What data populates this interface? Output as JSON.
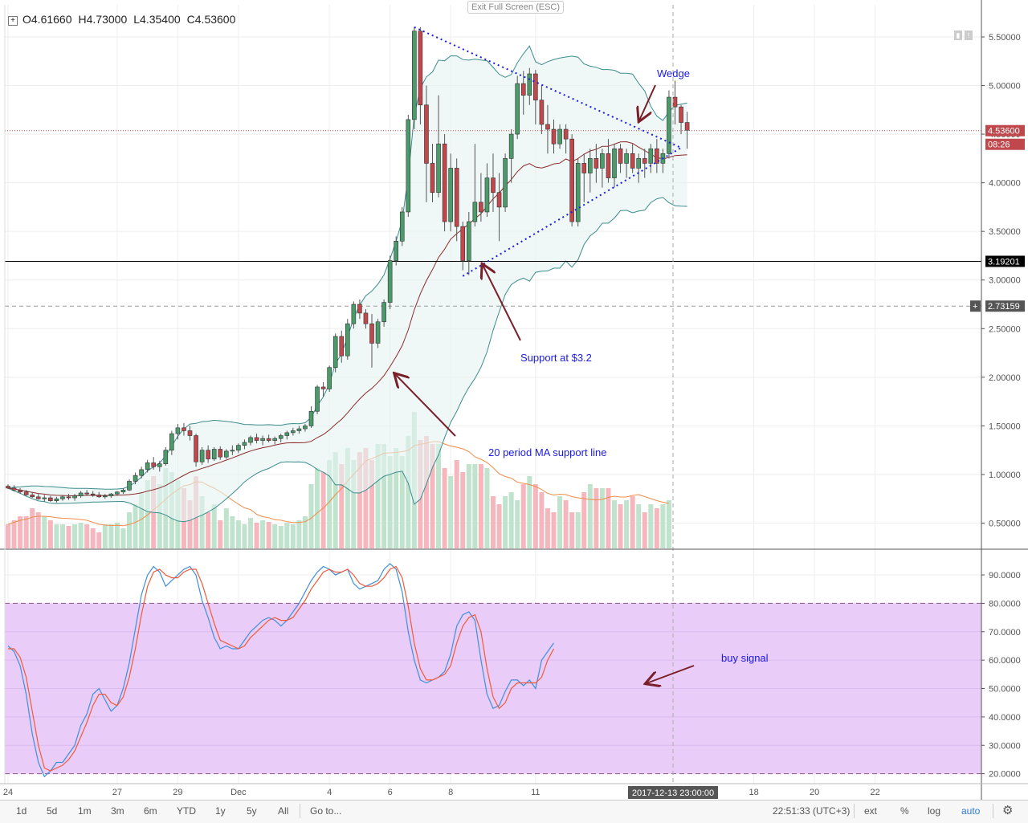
{
  "header": {
    "ohlc": [
      {
        "label": "O",
        "value": "4.61660"
      },
      {
        "label": "H",
        "value": "4.73000"
      },
      {
        "label": "L",
        "value": "4.35400"
      },
      {
        "label": "C",
        "value": "4.53600"
      }
    ],
    "exit_fullscreen": "Exit Full Screen (ESC)"
  },
  "toolbar": {
    "ranges": [
      "1d",
      "5d",
      "1m",
      "3m",
      "6m",
      "YTD",
      "1y",
      "5y",
      "All"
    ],
    "goto": "Go to...",
    "time": "22:51:33 (UTC+3)",
    "options": [
      "ext",
      "%",
      "log",
      "auto"
    ],
    "settings_icon": "gear-icon"
  },
  "colors": {
    "up": "#4a9a6a",
    "down": "#c0474c",
    "bollinger": "#3d8c8c",
    "ma": "#8b2b2b",
    "volume_ma": "#f08c4a",
    "stoch_k": "#3f8fdc",
    "stoch_d": "#ef5a3a",
    "stoch_band": "#e9cdf8",
    "wedge": "#1a1ae6",
    "annotation": "#1a1ae6",
    "arrow": "#7a1f2a"
  },
  "chart_data": [
    {
      "type": "candlestick",
      "x_tick_labels": [
        {
          "index": 0,
          "label": "24"
        },
        {
          "index": 18,
          "label": "27"
        },
        {
          "index": 28,
          "label": "29"
        },
        {
          "index": 38,
          "label": "Dec"
        },
        {
          "index": 53,
          "label": "4"
        },
        {
          "index": 63,
          "label": "6"
        },
        {
          "index": 73,
          "label": "8"
        },
        {
          "index": 87,
          "label": "11"
        },
        {
          "index": 123,
          "label": "18"
        },
        {
          "index": 133,
          "label": "20"
        },
        {
          "index": 143,
          "label": "22"
        }
      ],
      "y_ticks": [
        "5.50000",
        "5.00000",
        "4.50000",
        "4.00000",
        "3.50000",
        "3.00000",
        "2.50000",
        "2.00000",
        "1.50000",
        "1.00000",
        "0.50000"
      ],
      "ylim": [
        0.24,
        5.83
      ],
      "last_price": {
        "value": "4.53600",
        "countdown": "08:26"
      },
      "horizontal_lines": [
        {
          "value": "3.19201",
          "style": "solid"
        },
        {
          "value": "2.73159",
          "style": "dashed"
        }
      ],
      "crosshair_time": "2017-12-13 23:00:00",
      "candles": [
        [
          0.88,
          0.9,
          0.85,
          0.86
        ],
        [
          0.86,
          0.89,
          0.83,
          0.84
        ],
        [
          0.84,
          0.86,
          0.8,
          0.82
        ],
        [
          0.82,
          0.84,
          0.78,
          0.79
        ],
        [
          0.79,
          0.82,
          0.76,
          0.77
        ],
        [
          0.77,
          0.8,
          0.74,
          0.75
        ],
        [
          0.75,
          0.79,
          0.72,
          0.76
        ],
        [
          0.76,
          0.78,
          0.72,
          0.73
        ],
        [
          0.73,
          0.77,
          0.71,
          0.75
        ],
        [
          0.75,
          0.79,
          0.73,
          0.77
        ],
        [
          0.77,
          0.8,
          0.74,
          0.76
        ],
        [
          0.76,
          0.8,
          0.73,
          0.78
        ],
        [
          0.78,
          0.83,
          0.76,
          0.81
        ],
        [
          0.81,
          0.84,
          0.78,
          0.8
        ],
        [
          0.8,
          0.83,
          0.77,
          0.79
        ],
        [
          0.79,
          0.82,
          0.76,
          0.77
        ],
        [
          0.77,
          0.8,
          0.75,
          0.78
        ],
        [
          0.78,
          0.81,
          0.76,
          0.8
        ],
        [
          0.8,
          0.83,
          0.78,
          0.82
        ],
        [
          0.82,
          0.86,
          0.8,
          0.84
        ],
        [
          0.84,
          0.95,
          0.83,
          0.93
        ],
        [
          0.93,
          1.02,
          0.9,
          0.99
        ],
        [
          0.99,
          1.08,
          0.96,
          1.05
        ],
        [
          1.05,
          1.15,
          1.02,
          1.12
        ],
        [
          1.12,
          1.18,
          1.05,
          1.08
        ],
        [
          1.08,
          1.14,
          1.03,
          1.11
        ],
        [
          1.11,
          1.28,
          1.09,
          1.25
        ],
        [
          1.25,
          1.45,
          1.2,
          1.42
        ],
        [
          1.42,
          1.52,
          1.36,
          1.48
        ],
        [
          1.48,
          1.53,
          1.4,
          1.45
        ],
        [
          1.45,
          1.5,
          1.35,
          1.4
        ],
        [
          1.4,
          1.42,
          1.08,
          1.13
        ],
        [
          1.13,
          1.28,
          1.1,
          1.25
        ],
        [
          1.25,
          1.3,
          1.12,
          1.16
        ],
        [
          1.16,
          1.28,
          1.14,
          1.26
        ],
        [
          1.26,
          1.29,
          1.15,
          1.18
        ],
        [
          1.18,
          1.26,
          1.16,
          1.24
        ],
        [
          1.24,
          1.3,
          1.2,
          1.25
        ],
        [
          1.25,
          1.32,
          1.22,
          1.3
        ],
        [
          1.3,
          1.36,
          1.26,
          1.33
        ],
        [
          1.33,
          1.4,
          1.3,
          1.38
        ],
        [
          1.38,
          1.42,
          1.32,
          1.35
        ],
        [
          1.35,
          1.4,
          1.3,
          1.37
        ],
        [
          1.37,
          1.41,
          1.33,
          1.35
        ],
        [
          1.35,
          1.39,
          1.31,
          1.37
        ],
        [
          1.37,
          1.42,
          1.33,
          1.4
        ],
        [
          1.4,
          1.45,
          1.36,
          1.43
        ],
        [
          1.43,
          1.48,
          1.4,
          1.45
        ],
        [
          1.45,
          1.5,
          1.42,
          1.47
        ],
        [
          1.47,
          1.52,
          1.44,
          1.5
        ],
        [
          1.5,
          1.7,
          1.48,
          1.65
        ],
        [
          1.65,
          1.92,
          1.62,
          1.9
        ],
        [
          1.9,
          1.95,
          1.8,
          1.88
        ],
        [
          1.88,
          2.12,
          1.85,
          2.1
        ],
        [
          2.1,
          2.45,
          2.05,
          2.42
        ],
        [
          2.42,
          2.48,
          2.15,
          2.22
        ],
        [
          2.22,
          2.6,
          2.18,
          2.55
        ],
        [
          2.55,
          2.78,
          2.5,
          2.75
        ],
        [
          2.75,
          2.8,
          2.6,
          2.66
        ],
        [
          2.66,
          2.7,
          2.5,
          2.55
        ],
        [
          2.55,
          2.65,
          2.1,
          2.35
        ],
        [
          2.35,
          2.6,
          2.3,
          2.57
        ],
        [
          2.57,
          2.8,
          2.52,
          2.77
        ],
        [
          2.77,
          3.25,
          2.7,
          3.2
        ],
        [
          3.2,
          3.45,
          3.15,
          3.4
        ],
        [
          3.4,
          3.75,
          3.35,
          3.7
        ],
        [
          3.7,
          4.7,
          3.65,
          4.65
        ],
        [
          4.65,
          5.6,
          4.55,
          5.56
        ],
        [
          5.56,
          5.6,
          4.6,
          4.8
        ],
        [
          4.8,
          5.0,
          3.8,
          4.2
        ],
        [
          4.2,
          4.4,
          3.8,
          3.9
        ],
        [
          3.9,
          4.9,
          3.85,
          4.4
        ],
        [
          4.4,
          4.5,
          3.5,
          3.6
        ],
        [
          3.6,
          4.3,
          3.5,
          4.15
        ],
        [
          4.15,
          4.25,
          3.4,
          3.55
        ],
        [
          3.55,
          3.6,
          3.1,
          3.2
        ],
        [
          3.2,
          3.7,
          3.05,
          3.6
        ],
        [
          3.6,
          4.4,
          3.55,
          3.8
        ],
        [
          3.8,
          4.1,
          3.6,
          3.7
        ],
        [
          3.7,
          4.2,
          3.65,
          4.05
        ],
        [
          4.05,
          4.3,
          3.7,
          3.9
        ],
        [
          3.9,
          4.1,
          3.4,
          3.75
        ],
        [
          3.75,
          4.3,
          3.7,
          4.25
        ],
        [
          4.25,
          4.55,
          4.0,
          4.5
        ],
        [
          4.5,
          5.1,
          4.45,
          5.02
        ],
        [
          5.02,
          5.15,
          4.7,
          4.9
        ],
        [
          4.9,
          5.18,
          4.8,
          5.12
        ],
        [
          5.12,
          5.16,
          4.6,
          4.85
        ],
        [
          4.85,
          5.0,
          4.5,
          4.6
        ],
        [
          4.6,
          4.8,
          4.3,
          4.55
        ],
        [
          4.55,
          4.65,
          4.3,
          4.4
        ],
        [
          4.4,
          4.6,
          4.35,
          4.55
        ],
        [
          4.55,
          4.6,
          4.3,
          4.45
        ],
        [
          4.45,
          4.5,
          3.55,
          3.6
        ],
        [
          3.6,
          4.25,
          3.55,
          4.2
        ],
        [
          4.2,
          4.3,
          3.8,
          4.1
        ],
        [
          4.1,
          4.35,
          3.9,
          4.25
        ],
        [
          4.25,
          4.4,
          4.0,
          4.15
        ],
        [
          4.15,
          4.35,
          3.95,
          4.3
        ],
        [
          4.3,
          4.45,
          4.0,
          4.05
        ],
        [
          4.05,
          4.4,
          3.95,
          4.35
        ],
        [
          4.35,
          4.4,
          4.1,
          4.2
        ],
        [
          4.2,
          4.35,
          4.05,
          4.3
        ],
        [
          4.3,
          4.4,
          4.1,
          4.15
        ],
        [
          4.15,
          4.3,
          4.0,
          4.25
        ],
        [
          4.25,
          4.35,
          4.05,
          4.2
        ],
        [
          4.2,
          4.4,
          4.1,
          4.35
        ],
        [
          4.35,
          4.45,
          4.1,
          4.2
        ],
        [
          4.2,
          4.35,
          4.1,
          4.3
        ],
        [
          4.3,
          4.95,
          4.25,
          4.88
        ],
        [
          4.88,
          5.05,
          4.6,
          4.78
        ],
        [
          4.78,
          4.8,
          4.5,
          4.62
        ],
        [
          4.62,
          4.73,
          4.35,
          4.54
        ]
      ],
      "volume": [
        0.3,
        0.35,
        0.4,
        0.4,
        0.5,
        0.45,
        0.4,
        0.35,
        0.3,
        0.3,
        0.28,
        0.3,
        0.32,
        0.3,
        0.25,
        0.2,
        0.3,
        0.3,
        0.32,
        0.25,
        0.45,
        0.55,
        0.7,
        0.85,
        0.9,
        0.8,
        1.0,
        0.95,
        0.85,
        0.75,
        0.6,
        0.9,
        0.65,
        0.45,
        0.55,
        0.35,
        0.5,
        0.4,
        0.35,
        0.3,
        0.38,
        0.32,
        0.35,
        0.33,
        0.3,
        0.28,
        0.32,
        0.3,
        0.35,
        0.4,
        0.8,
        1.0,
        0.95,
        1.1,
        1.2,
        1.05,
        1.25,
        1.1,
        1.2,
        1.25,
        1.1,
        1.3,
        1.3,
        1.15,
        1.25,
        1.15,
        1.4,
        1.7,
        1.35,
        1.4,
        1.3,
        1.3,
        1.0,
        0.9,
        1.1,
        0.95,
        1.05,
        1.05,
        1.05,
        1.0,
        0.65,
        0.55,
        0.65,
        0.7,
        0.6,
        0.8,
        0.9,
        0.8,
        0.7,
        0.5,
        0.45,
        0.65,
        0.6,
        0.45,
        0.45,
        0.7,
        0.8,
        0.75,
        0.75,
        0.75,
        0.6,
        0.55,
        0.6,
        0.65,
        0.55,
        0.45,
        0.55,
        0.5,
        0.55,
        0.6
      ]
    },
    {
      "type": "line",
      "name": "stochastic",
      "y_ticks": [
        "90.0000",
        "80.0000",
        "70.0000",
        "60.0000",
        "50.0000",
        "40.0000",
        "30.0000",
        "20.0000"
      ],
      "ylim": [
        16.5,
        98.5
      ],
      "bands": [
        20,
        80
      ],
      "series": [
        {
          "values": [
            65,
            63,
            58,
            48,
            34,
            24,
            19,
            21,
            24,
            24,
            27,
            30,
            37,
            41,
            48,
            50,
            46,
            42,
            44,
            50,
            59,
            71,
            83,
            90,
            93,
            91,
            86,
            88,
            90,
            92,
            93,
            90,
            81,
            75,
            68,
            64,
            65,
            64,
            64,
            67,
            70,
            72,
            74,
            75,
            74,
            72,
            74,
            77,
            80,
            84,
            88,
            91,
            93,
            92,
            90,
            91,
            92,
            87,
            85,
            86,
            87,
            88,
            92,
            94,
            92,
            84,
            70,
            60,
            53,
            52,
            53,
            54,
            56,
            62,
            72,
            76,
            77,
            74,
            60,
            48,
            43,
            44,
            49,
            53,
            53,
            51,
            53,
            50,
            60,
            63,
            66
          ]
        },
        {
          "values": [
            64,
            64,
            61,
            54,
            42,
            30,
            22,
            21,
            22,
            23,
            25,
            28,
            33,
            38,
            44,
            48,
            48,
            45,
            44,
            47,
            54,
            64,
            76,
            86,
            91,
            92,
            90,
            89,
            89,
            91,
            92,
            92,
            87,
            80,
            73,
            67,
            66,
            65,
            64,
            65,
            68,
            70,
            72,
            74,
            75,
            74,
            74,
            75,
            78,
            81,
            85,
            88,
            91,
            92,
            91,
            91,
            92,
            90,
            87,
            86,
            86,
            87,
            89,
            92,
            93,
            89,
            79,
            66,
            57,
            53,
            53,
            54,
            55,
            58,
            66,
            72,
            75,
            76,
            70,
            57,
            47,
            43,
            45,
            50,
            52,
            52,
            52,
            52,
            54,
            60,
            64
          ]
        }
      ]
    }
  ],
  "annotations": {
    "wedge": "Wedge",
    "support": "Support at $3.2",
    "ma_support": "20 period MA support line",
    "buy_signal": "buy signal"
  }
}
